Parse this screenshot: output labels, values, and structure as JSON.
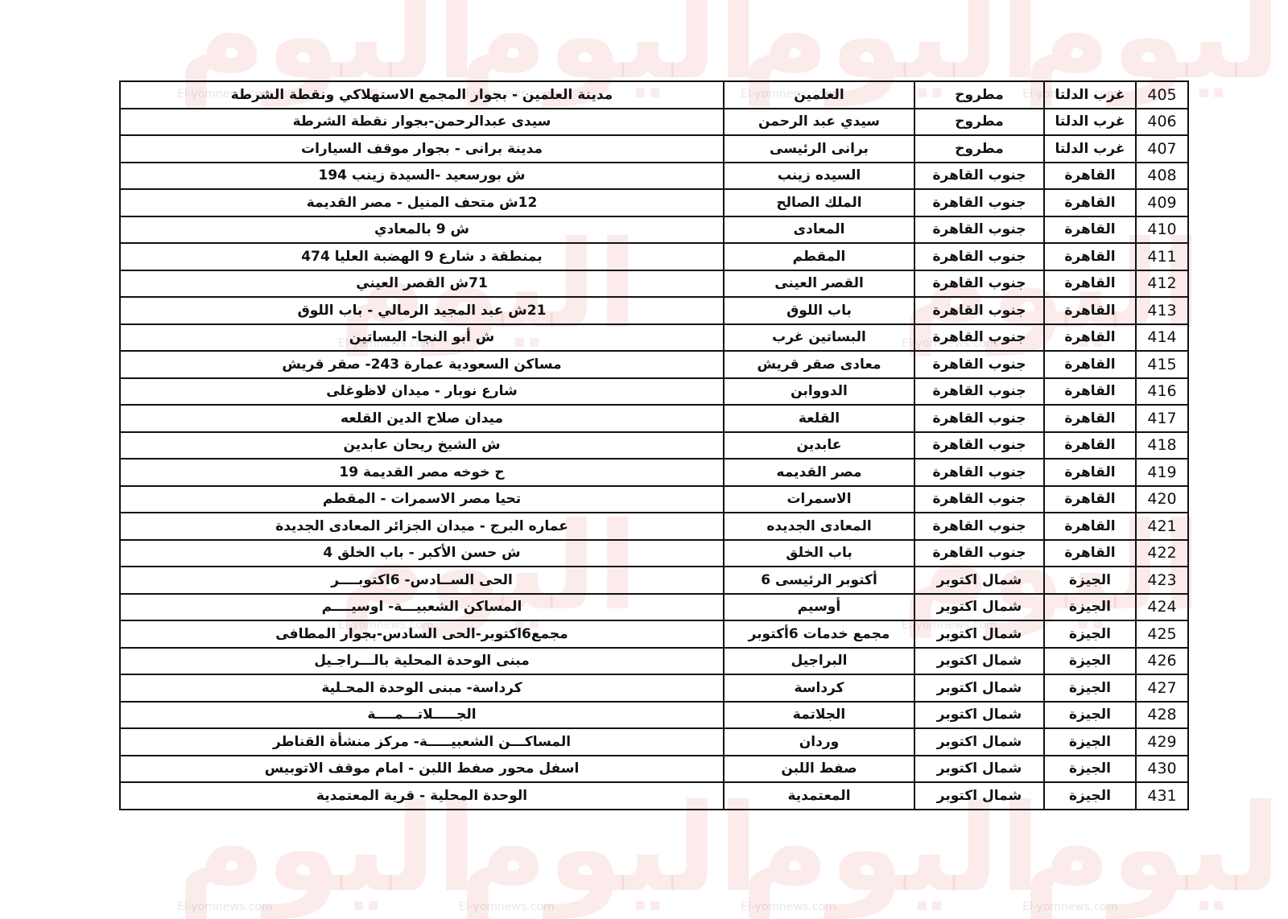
{
  "watermark": {
    "logo_text": "اليوم",
    "site": "El-yomnews.com",
    "slogan": "صحافة من أجل قلم حر"
  },
  "table": {
    "rows": [
      {
        "number": "405",
        "region": "غرب الدلتا",
        "sector": "مطروح",
        "station": "العلمين",
        "address": "مدينة العلمين - بجوار المجمع الاستهلاكي ونقطة الشرطة"
      },
      {
        "number": "406",
        "region": "غرب الدلتا",
        "sector": "مطروح",
        "station": "سيدي عبد الرحمن",
        "address": "سيدى عبدالرحمن-بجوار نقطة الشرطة"
      },
      {
        "number": "407",
        "region": "غرب الدلتا",
        "sector": "مطروح",
        "station": "برانى الرئيسى",
        "address": "مدينة برانى - بجوار موقف السيارات"
      },
      {
        "number": "408",
        "region": "القاهرة",
        "sector": "جنوب القاهرة",
        "station": "السيده زينب",
        "address": "ش بورسعيد -السيدة زينب 194"
      },
      {
        "number": "409",
        "region": "القاهرة",
        "sector": "جنوب القاهرة",
        "station": "الملك الصالح",
        "address": "12ش متحف المنيل - مصر القديمة"
      },
      {
        "number": "410",
        "region": "القاهرة",
        "sector": "جنوب القاهرة",
        "station": "المعادى",
        "address": "ش 9 بالمعادي"
      },
      {
        "number": "411",
        "region": "القاهرة",
        "sector": "جنوب القاهرة",
        "station": "المقطم",
        "address": "بمنطقة د شارع 9 الهضبة العليا 474"
      },
      {
        "number": "412",
        "region": "القاهرة",
        "sector": "جنوب القاهرة",
        "station": "القصر العينى",
        "address": "71ش القصر العيني"
      },
      {
        "number": "413",
        "region": "القاهرة",
        "sector": "جنوب القاهرة",
        "station": "باب اللوق",
        "address": "21ش عبد المجيد الرمالي -   باب اللوق"
      },
      {
        "number": "414",
        "region": "القاهرة",
        "sector": "جنوب القاهرة",
        "station": "البساتين غرب",
        "address": "ش أبو النجا- البساتين"
      },
      {
        "number": "415",
        "region": "القاهرة",
        "sector": "جنوب القاهرة",
        "station": "معادى صقر قريش",
        "address": "مساكن السعودية عمارة 243-  صقر قريش"
      },
      {
        "number": "416",
        "region": "القاهرة",
        "sector": "جنوب القاهرة",
        "station": "الدووابن",
        "address": "شارع نوبار - ميدان لاظوغلى"
      },
      {
        "number": "417",
        "region": "القاهرة",
        "sector": "جنوب القاهرة",
        "station": "القلعة",
        "address": "ميدان صلاح الدين القلعه"
      },
      {
        "number": "418",
        "region": "القاهرة",
        "sector": "جنوب القاهرة",
        "station": "عابدين",
        "address": "ش الشيخ ريحان عابدين"
      },
      {
        "number": "419",
        "region": "القاهرة",
        "sector": "جنوب القاهرة",
        "station": "مصر القديمه",
        "address": "ح خوخه مصر القديمة 19"
      },
      {
        "number": "420",
        "region": "القاهرة",
        "sector": "جنوب القاهرة",
        "station": "الاسمرات",
        "address": "تحيا مصر الاسمرات - المقطم"
      },
      {
        "number": "421",
        "region": "القاهرة",
        "sector": "جنوب القاهرة",
        "station": "المعادى الجديده",
        "address": "عماره البرج - ميدان الجزائر المعادى الجديدة"
      },
      {
        "number": "422",
        "region": "القاهرة",
        "sector": "جنوب القاهرة",
        "station": "باب الخلق",
        "address": "ش حسن الأكبر - باب الخلق 4"
      },
      {
        "number": "423",
        "region": "الجيزة",
        "sector": "شمال اكتوبر",
        "station": "أكتوبر الرئيسى 6",
        "address": "الحى الســادس- 6اكتوبــــر"
      },
      {
        "number": "424",
        "region": "الجيزة",
        "sector": "شمال اكتوبر",
        "station": "أوسيم",
        "address": "المساكن الشعبيـــة- اوسيــــم"
      },
      {
        "number": "425",
        "region": "الجيزة",
        "sector": "شمال اكتوبر",
        "station": "مجمع خدمات 6أكتوبر",
        "address": "مجمع6اكتوبر-الحى السادس-بجوار المطافى"
      },
      {
        "number": "426",
        "region": "الجيزة",
        "sector": "شمال اكتوبر",
        "station": "البراجيل",
        "address": "مبنى الوحدة المحلية بالـــراجـيل"
      },
      {
        "number": "427",
        "region": "الجيزة",
        "sector": "شمال اكتوبر",
        "station": "كرداسة",
        "address": "كرداسة- مبنى الوحدة المحـلية"
      },
      {
        "number": "428",
        "region": "الجيزة",
        "sector": "شمال اكتوبر",
        "station": "الجلاتمة",
        "address": "الجـــــلاتـــمــــة"
      },
      {
        "number": "429",
        "region": "الجيزة",
        "sector": "شمال اكتوبر",
        "station": "وردان",
        "address": "المساكـــن الشعبيـــــة- مركز منشأة القناطر"
      },
      {
        "number": "430",
        "region": "الجيزة",
        "sector": "شمال اكتوبر",
        "station": "صفط اللبن",
        "address": "اسفل محور صفط اللبن - امام موقف الاتوبيس"
      },
      {
        "number": "431",
        "region": "الجيزة",
        "sector": "شمال اكتوبر",
        "station": "المعتمدية",
        "address": "الوحدة المحلية - قرية المعتمدية"
      }
    ]
  }
}
